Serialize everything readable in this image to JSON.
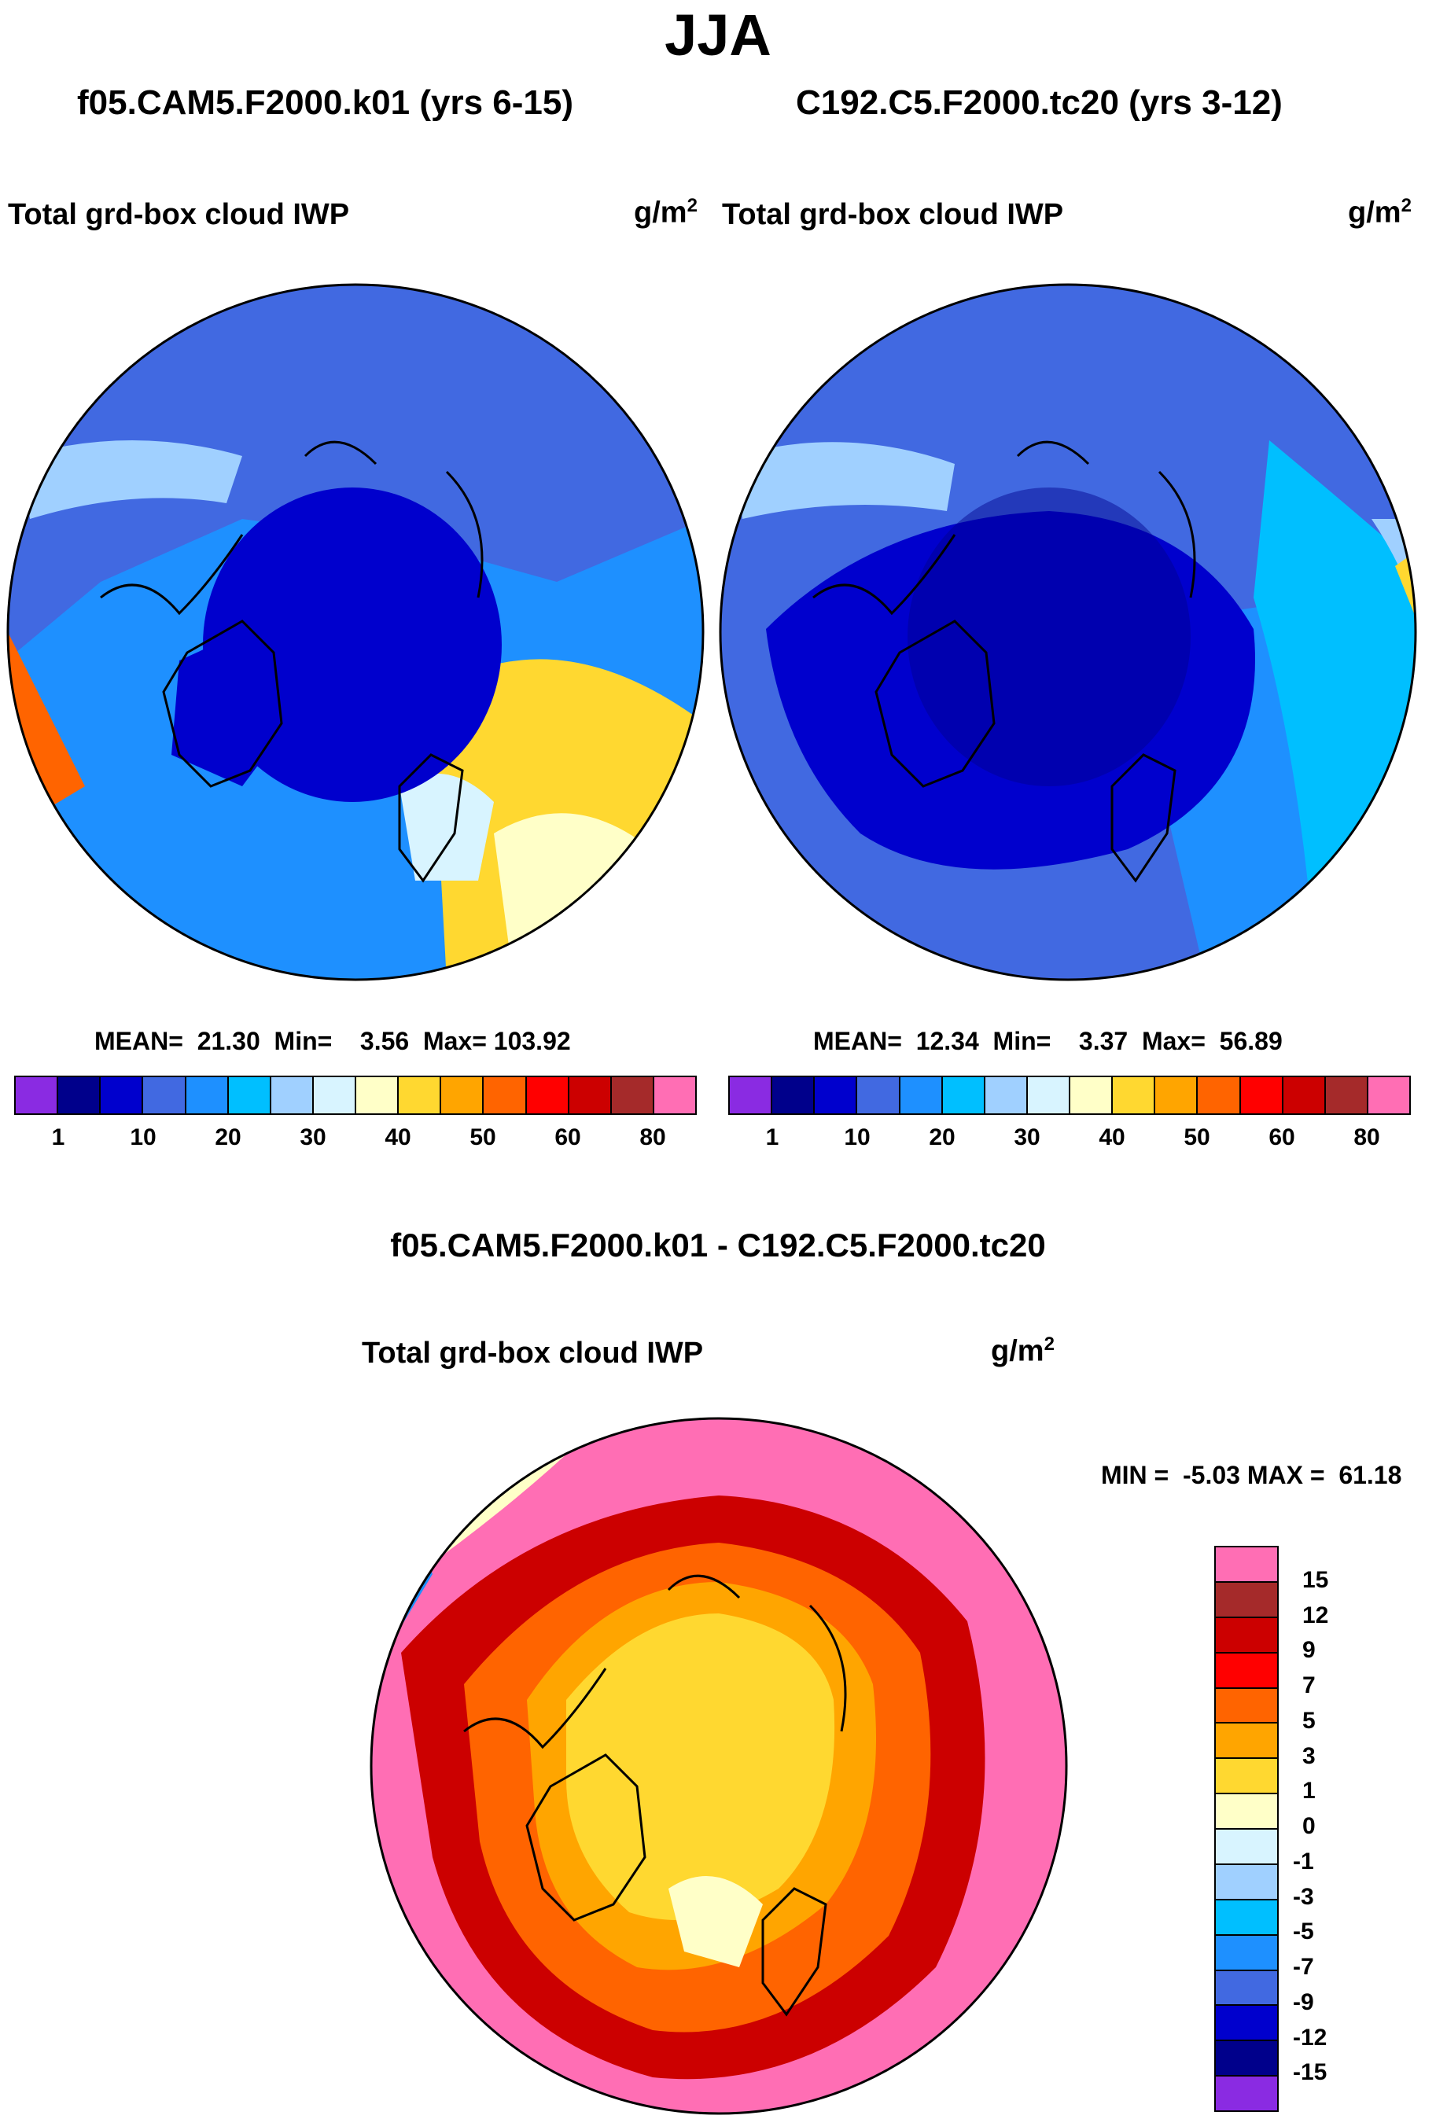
{
  "season": "JJA",
  "var_title": "Total grd-box cloud IWP",
  "units_base": "g/m",
  "units_exp": "2",
  "panel_left": {
    "case": "f05.CAM5.F2000.k01 (yrs 6-15)",
    "stats": "MEAN=  21.30  Min=    3.56  Max= 103.92"
  },
  "panel_right": {
    "case": "C192.C5.F2000.tc20 (yrs 3-12)",
    "stats": "MEAN=  12.34  Min=    3.37  Max=  56.89"
  },
  "diff": {
    "title": "f05.CAM5.F2000.k01 - C192.C5.F2000.tc20",
    "stats": "MIN =  -5.03 MAX =  61.18"
  },
  "colorbar_main": {
    "colors": [
      "#8a2be2",
      "#00008b",
      "#0000cd",
      "#4169e1",
      "#1e90ff",
      "#00bfff",
      "#a0d0ff",
      "#d8f4ff",
      "#ffffc8",
      "#ffd830",
      "#ffa500",
      "#ff6400",
      "#ff0000",
      "#cc0000",
      "#a52a2a",
      "#ff6eb4"
    ],
    "ticks": [
      "1",
      "10",
      "20",
      "30",
      "40",
      "50",
      "60",
      "80"
    ]
  },
  "colorbar_diff": {
    "colors": [
      "#ff6eb4",
      "#a52a2a",
      "#cc0000",
      "#ff0000",
      "#ff6400",
      "#ffa500",
      "#ffd830",
      "#ffffc8",
      "#d8f4ff",
      "#a0d0ff",
      "#00bfff",
      "#1e90ff",
      "#4169e1",
      "#0000cd",
      "#00008b",
      "#8a2be2"
    ],
    "ticks": [
      "15",
      "12",
      "9",
      "7",
      "5",
      "3",
      "1",
      "0",
      "-1",
      "-3",
      "-5",
      "-7",
      "-9",
      "-12",
      "-15"
    ]
  }
}
